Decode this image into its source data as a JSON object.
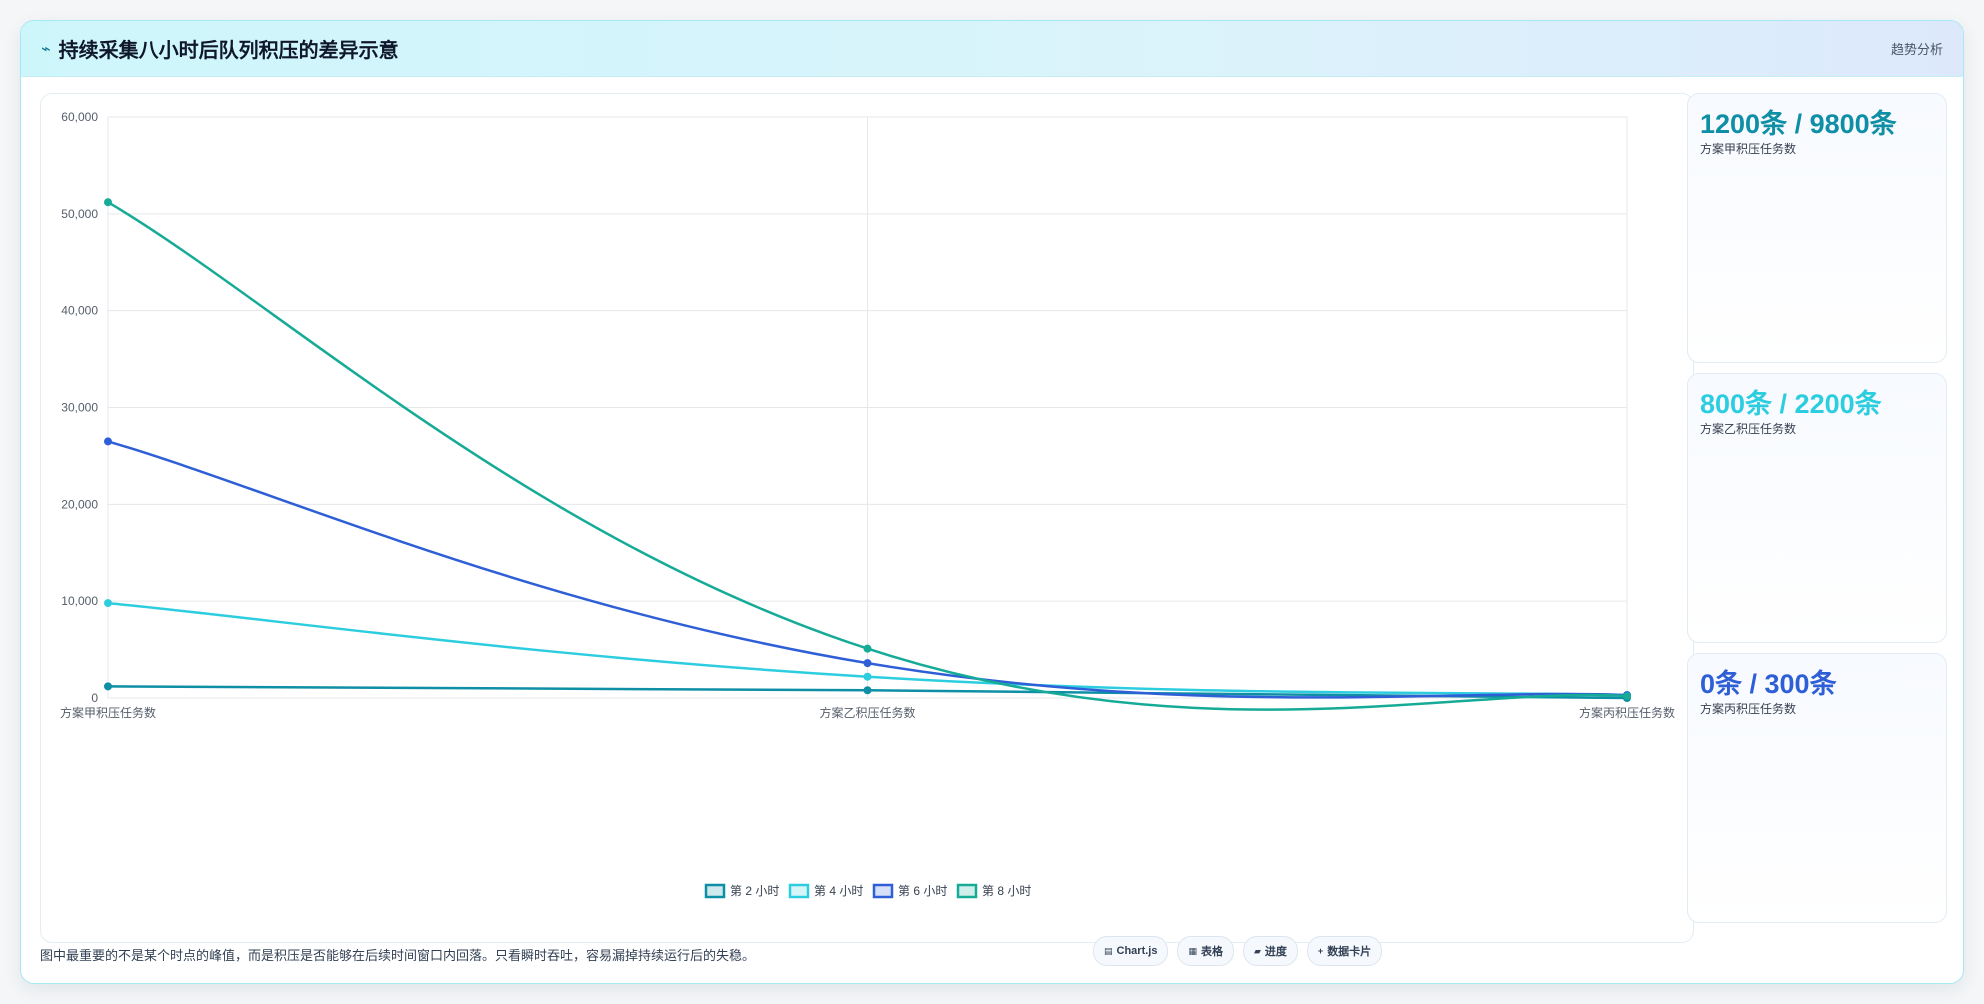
{
  "header": {
    "icon": "trend-icon",
    "title": "持续采集八小时后队列积压的差异示意",
    "link_label": "趋势分析"
  },
  "chart_data": {
    "type": "line",
    "categories": [
      "方案甲积压任务数",
      "方案乙积压任务数",
      "方案丙积压任务数"
    ],
    "series": [
      {
        "name": "第 2 小时",
        "values": [
          1200,
          800,
          0
        ],
        "color": "#0e8fa5"
      },
      {
        "name": "第 4 小时",
        "values": [
          9800,
          2200,
          300
        ],
        "color": "#2dcde0"
      },
      {
        "name": "第 6 小时",
        "values": [
          26500,
          3600,
          300
        ],
        "color": "#2f5fd6"
      },
      {
        "name": "第 8 小时",
        "values": [
          51200,
          5100,
          200
        ],
        "color": "#16ab97"
      }
    ],
    "ylim": [
      0,
      60000
    ],
    "yticks": [
      "0",
      "10,000",
      "20,000",
      "30,000",
      "40,000",
      "50,000",
      "60,000"
    ],
    "title": "",
    "xlabel": "",
    "ylabel": "",
    "grid": true,
    "legend": "bottom"
  },
  "cards": [
    {
      "value": "1200条 / 9800条",
      "label": "方案甲积压任务数",
      "color": "#0e8fa5"
    },
    {
      "value": "800条 / 2200条",
      "label": "方案乙积压任务数",
      "color": "#2dcde0"
    },
    {
      "value": "0条 / 300条",
      "label": "方案丙积压任务数",
      "color": "#2f5fd6"
    }
  ],
  "footer": {
    "note": "图中最重要的不是某个时点的峰值，而是积压是否能够在后续时间窗口内回落。只看瞬时吞吐，容易漏掉持续运行后的失稳。",
    "tools": [
      {
        "icon": "chart-icon",
        "label": "Chart.js"
      },
      {
        "icon": "table-icon",
        "label": "表格"
      },
      {
        "icon": "progress-icon",
        "label": "进度"
      },
      {
        "icon": "plus-icon",
        "label": "数据卡片"
      }
    ]
  }
}
